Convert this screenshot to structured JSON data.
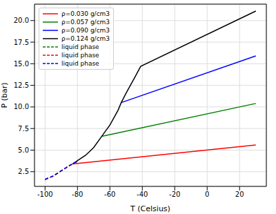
{
  "chart_data": {
    "type": "line",
    "x_label": "T (Celsius)",
    "y_label": "P (bar)",
    "xlim": [
      -106.5,
      36.5
    ],
    "xticks": [
      -100,
      -80,
      -60,
      -40,
      -20,
      0,
      20
    ],
    "ylim": [
      0.8,
      21.9
    ],
    "yticks": [
      {
        "value": 2.5,
        "label": "2.5"
      },
      {
        "value": 5,
        "label": "5.0"
      },
      {
        "value": 7.5,
        "label": "7.5"
      },
      {
        "value": 10,
        "label": "10.0"
      },
      {
        "value": 12.5,
        "label": "12.5"
      },
      {
        "value": 15,
        "label": "15.0"
      },
      {
        "value": 17.5,
        "label": "17.5"
      },
      {
        "value": 20,
        "label": "20.0"
      }
    ],
    "grid": true,
    "legend": "upper left",
    "series": [
      {
        "name": "ρ=0.030 g/cm3",
        "color": "#ff0000",
        "line_style": "solid",
        "x": [
          -83,
          30
        ],
        "values": [
          3.4,
          5.6
        ]
      },
      {
        "name": "ρ=0.057 g/cm3",
        "color": "#008000",
        "line_style": "solid",
        "x": [
          -65,
          30
        ],
        "values": [
          6.6,
          10.4
        ]
      },
      {
        "name": "ρ=0.090 g/cm3",
        "color": "#0000ff",
        "line_style": "solid",
        "x": [
          -53,
          30
        ],
        "values": [
          10.5,
          15.9
        ]
      },
      {
        "name": "ρ=0.124 g/cm3",
        "color": "#000000",
        "line_style": "solid",
        "x": [
          -83,
          -75,
          -70,
          -65,
          -60,
          -55,
          -53,
          -50,
          -45,
          -41,
          30
        ],
        "values": [
          3.4,
          4.4,
          5.3,
          6.6,
          7.9,
          9.6,
          10.5,
          11.6,
          13.3,
          14.7,
          21.1
        ]
      },
      {
        "name": "liquid phase",
        "color": "#008000",
        "line_style": "dashed",
        "x": [
          -100,
          -95,
          -90,
          -85,
          -80
        ],
        "values": [
          1.6,
          2.0,
          2.6,
          3.2,
          3.7
        ]
      },
      {
        "name": "liquid phase",
        "color": "#ff0000",
        "line_style": "dashed",
        "x": [
          -100,
          -95,
          -90,
          -85,
          -80
        ],
        "values": [
          1.6,
          2.0,
          2.6,
          3.2,
          3.7
        ]
      },
      {
        "name": "liquid phase",
        "color": "#0000ff",
        "line_style": "dashed",
        "x": [
          -100,
          -95,
          -90,
          -85,
          -80
        ],
        "values": [
          1.6,
          2.0,
          2.6,
          3.2,
          3.7
        ]
      }
    ]
  }
}
